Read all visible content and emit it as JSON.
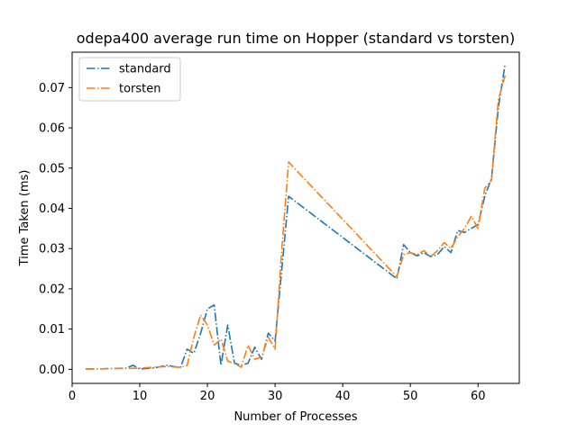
{
  "chart_data": {
    "type": "line",
    "title": "odepa400 average run time on Hopper (standard vs torsten)",
    "xlabel": "Number of Processes",
    "ylabel": "Time Taken (ms)",
    "xlim": [
      0,
      66.1
    ],
    "ylim": [
      -0.0035,
      0.0788
    ],
    "xticks": [
      0,
      10,
      20,
      30,
      40,
      50,
      60
    ],
    "yticks": [
      "0.00",
      "0.01",
      "0.02",
      "0.03",
      "0.04",
      "0.05",
      "0.06",
      "0.07"
    ],
    "grid": false,
    "legend_position": "upper left",
    "series": [
      {
        "name": "standard",
        "color": "#1f77b4",
        "dash": "dashdot",
        "x": [
          2,
          4,
          6,
          8,
          9,
          10,
          12,
          14,
          16,
          17,
          18,
          19,
          20,
          21,
          22,
          23,
          24,
          25,
          26,
          27,
          28,
          29,
          30,
          31,
          32,
          48,
          49,
          50,
          51,
          52,
          53,
          54,
          55,
          56,
          57,
          58,
          59,
          60,
          61,
          62,
          63,
          64
        ],
        "y": [
          0.0001,
          0.0001,
          0.0002,
          0.0003,
          0.001,
          0.0001,
          0.0003,
          0.001,
          0.0004,
          0.005,
          0.004,
          0.009,
          0.015,
          0.016,
          0.001,
          0.011,
          0.0015,
          0.001,
          0.0015,
          0.0055,
          0.0025,
          0.009,
          0.007,
          0.025,
          0.043,
          0.0225,
          0.031,
          0.029,
          0.0282,
          0.029,
          0.028,
          0.0285,
          0.0305,
          0.029,
          0.0345,
          0.034,
          0.035,
          0.036,
          0.043,
          0.0475,
          0.065,
          0.0758
        ]
      },
      {
        "name": "torsten",
        "color": "#ff7f0e",
        "dash": "dashdot",
        "x": [
          2,
          4,
          6,
          8,
          10,
          12,
          14,
          16,
          17,
          18,
          19,
          20,
          21,
          22,
          23,
          24,
          25,
          26,
          27,
          28,
          29,
          30,
          31,
          32,
          48,
          49,
          50,
          51,
          52,
          53,
          54,
          55,
          56,
          57,
          58,
          59,
          60,
          61,
          62,
          63,
          64
        ],
        "y": [
          0.0001,
          0.0001,
          0.0002,
          0.0002,
          0.0003,
          0.0005,
          0.0007,
          0.0005,
          0.001,
          0.008,
          0.0135,
          0.011,
          0.006,
          0.0075,
          0.002,
          0.0015,
          0.0005,
          0.006,
          0.0025,
          0.003,
          0.008,
          0.005,
          0.03,
          0.0515,
          0.023,
          0.0285,
          0.029,
          0.0285,
          0.0295,
          0.028,
          0.0295,
          0.0315,
          0.03,
          0.033,
          0.035,
          0.038,
          0.035,
          0.045,
          0.047,
          0.067,
          0.073
        ]
      }
    ]
  }
}
